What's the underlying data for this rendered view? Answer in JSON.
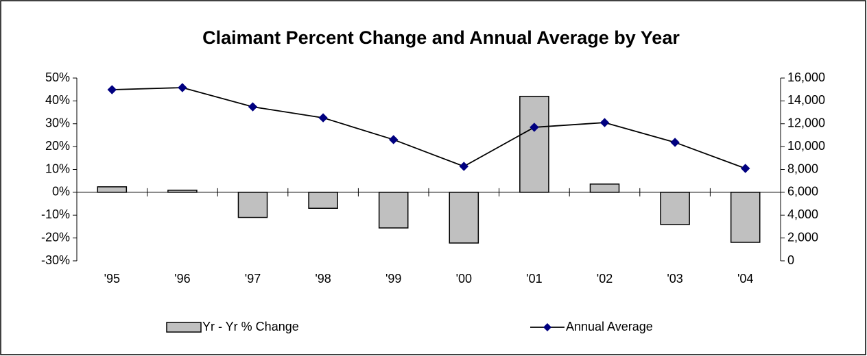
{
  "chart_data": {
    "type": "combo",
    "title": "Claimant Percent Change and Annual Average by Year",
    "categories": [
      "'95",
      "'96",
      "'97",
      "'98",
      "'99",
      "'00",
      "'01",
      "'02",
      "'03",
      "'04"
    ],
    "series": [
      {
        "name": "Yr - Yr % Change",
        "type": "bar",
        "axis": "y",
        "color": "#c0c0c0",
        "values": [
          2.4,
          0.9,
          -11,
          -7,
          -15.6,
          -22.2,
          42,
          3.6,
          -14.1,
          -21.9
        ]
      },
      {
        "name": "Annual Average",
        "type": "line",
        "axis": "y2",
        "color": "#000080",
        "values": [
          14980,
          15160,
          13480,
          12520,
          10610,
          8270,
          11690,
          12100,
          10370,
          8090
        ]
      }
    ],
    "ylim": [
      -30,
      50
    ],
    "yticks": [
      {
        "value": -30,
        "label": "-30%"
      },
      {
        "value": -20,
        "label": "-20%"
      },
      {
        "value": -10,
        "label": "-10%"
      },
      {
        "value": 0,
        "label": "0%"
      },
      {
        "value": 10,
        "label": "10%"
      },
      {
        "value": 20,
        "label": "20%"
      },
      {
        "value": 30,
        "label": "30%"
      },
      {
        "value": 40,
        "label": "40%"
      },
      {
        "value": 50,
        "label": "50%"
      }
    ],
    "y2lim": [
      0,
      16000
    ],
    "y2ticks": [
      0,
      {
        "value": 2000,
        "label": "2,000"
      },
      {
        "value": 4000,
        "label": "4,000"
      },
      {
        "value": 6000,
        "label": "6,000"
      },
      {
        "value": 8000,
        "label": "8,000"
      },
      {
        "value": 10000,
        "label": "10,000"
      },
      {
        "value": 12000,
        "label": "12,000"
      },
      {
        "value": 14000,
        "label": "14,000"
      },
      {
        "value": 16000,
        "label": "16,000"
      }
    ],
    "legend": "bottom"
  }
}
